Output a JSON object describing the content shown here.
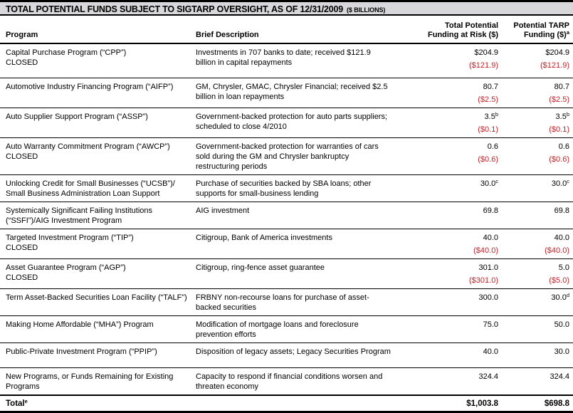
{
  "title": {
    "main": "TOTAL POTENTIAL FUNDS SUBJECT TO SIGTARP OVERSIGHT, AS OF 12/31/2009",
    "unit": "($ BILLIONS)"
  },
  "colors": {
    "accent_red": "#c42127",
    "title_bg": "#d8d8da"
  },
  "columns": {
    "program": "Program",
    "description": "Brief Description",
    "risk": [
      "Total Potential",
      "Funding at Risk ($)"
    ],
    "tarp": [
      "Potential TARP",
      "Funding ($)"
    ],
    "tarp_sup": "a"
  },
  "rows": [
    {
      "program": "Capital Purchase Program (“CPP”)",
      "status": "CLOSED",
      "description": "Investments in 707 banks to date; received $121.9 billion in capital repayments",
      "risk": "$204.9",
      "risk_sub": "($121.9)",
      "tarp": "$204.9",
      "tarp_sub": "($121.9)"
    },
    {
      "program": "Automotive Industry Financing Program (“AIFP”)",
      "description": "GM, Chrysler, GMAC, Chrysler Financial; received $2.5 billion in loan repayments",
      "risk": "80.7",
      "risk_sub": "($2.5)",
      "tarp": "80.7",
      "tarp_sub": "($2.5)"
    },
    {
      "program": "Auto Supplier Support Program (“ASSP”)",
      "description": "Government-backed protection for auto parts suppliers; scheduled to close 4/2010",
      "risk": "3.5",
      "risk_sup": "b",
      "risk_sub": "($0.1)",
      "tarp": "3.5",
      "tarp_sup": "b",
      "tarp_sub": "($0.1)"
    },
    {
      "program": "Auto Warranty Commitment Program (“AWCP”)",
      "status": "CLOSED",
      "description": "Government-backed protection for warranties of cars sold during the GM and Chrysler bankruptcy restructuring periods",
      "risk": "0.6",
      "risk_sub": "($0.6)",
      "tarp": "0.6",
      "tarp_sub": "($0.6)"
    },
    {
      "program": "Unlocking Credit for Small Businesses (“UCSB”)/ Small Business Administration Loan Support",
      "description": "Purchase of securities backed by SBA loans; other supports for small-business lending",
      "risk": "30.0",
      "risk_sup": "c",
      "tarp": "30.0",
      "tarp_sup": "c"
    },
    {
      "program": "Systemically Significant Failing Institutions (“SSFI”)/AIG Investment Program",
      "description": "AIG investment",
      "risk": "69.8",
      "tarp": "69.8"
    },
    {
      "program": "Targeted Investment Program (“TIP”)",
      "status": "CLOSED",
      "description": "Citigroup, Bank of America investments",
      "risk": "40.0",
      "risk_sub": "($40.0)",
      "tarp": "40.0",
      "tarp_sub": "($40.0)"
    },
    {
      "program": "Asset Guarantee Program (“AGP”)",
      "status": "CLOSED",
      "description": "Citigroup, ring-fence asset guarantee",
      "risk": "301.0",
      "risk_sub": "($301.0)",
      "tarp": "5.0",
      "tarp_sub": "($5.0)"
    },
    {
      "program": "Term Asset-Backed Securities Loan Facility (“TALF”)",
      "description": "FRBNY non-recourse loans for purchase of asset-backed securities",
      "risk": "300.0",
      "tarp": "30.0",
      "tarp_sup": "d"
    },
    {
      "program": "Making Home Affordable (“MHA”) Program",
      "description": "Modification of mortgage loans and foreclosure prevention efforts",
      "risk": "75.0",
      "tarp": "50.0"
    },
    {
      "program": "Public-Private Investment Program (“PPIP”)",
      "description": "Disposition of legacy assets; Legacy Securities Program",
      "risk": "40.0",
      "tarp": "30.0"
    },
    {
      "program": "New Programs, or Funds Remaining for Existing Programs",
      "description": "Capacity to respond if financial conditions worsen and threaten economy",
      "risk": "324.4",
      "tarp": "324.4"
    }
  ],
  "total": {
    "label": "Total",
    "label_sup": "e",
    "risk": "$1,003.8",
    "tarp": "$698.8"
  }
}
